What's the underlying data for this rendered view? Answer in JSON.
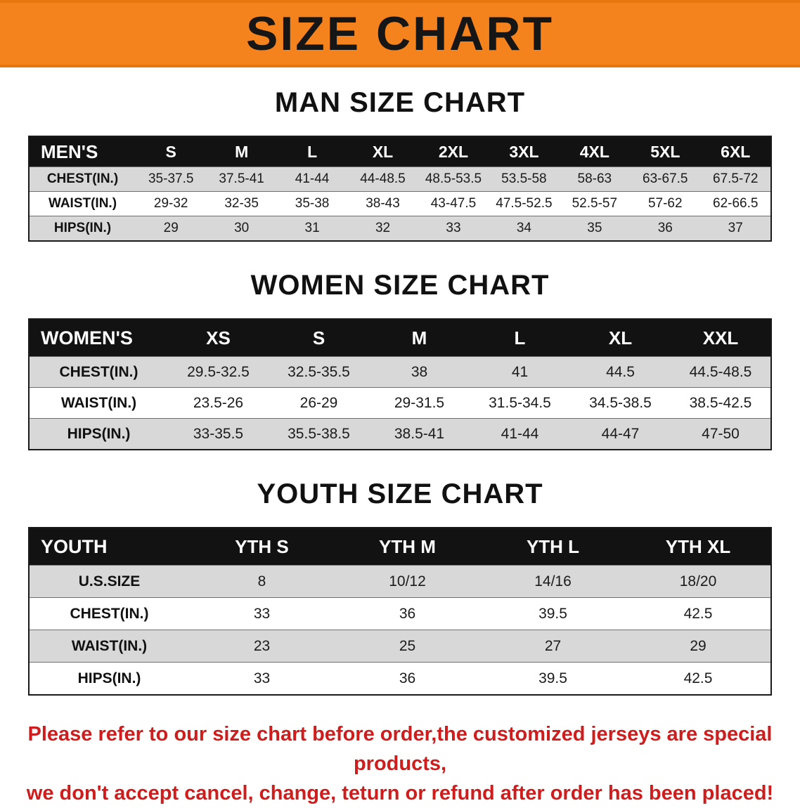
{
  "banner": {
    "title": "SIZE CHART",
    "bg_color": "#f5831d"
  },
  "sections": [
    {
      "id": "mens",
      "title": "MAN SIZE CHART",
      "header_label": "MEN'S",
      "columns": [
        "S",
        "M",
        "L",
        "XL",
        "2XL",
        "3XL",
        "4XL",
        "5XL",
        "6XL"
      ],
      "rows": [
        {
          "label": "CHEST(IN.)",
          "values": [
            "35-37.5",
            "37.5-41",
            "41-44",
            "44-48.5",
            "48.5-53.5",
            "53.5-58",
            "58-63",
            "63-67.5",
            "67.5-72"
          ]
        },
        {
          "label": "WAIST(IN.)",
          "values": [
            "29-32",
            "32-35",
            "35-38",
            "38-43",
            "43-47.5",
            "47.5-52.5",
            "52.5-57",
            "57-62",
            "62-66.5"
          ]
        },
        {
          "label": "HIPS(IN.)",
          "values": [
            "29",
            "30",
            "31",
            "32",
            "33",
            "34",
            "35",
            "36",
            "37"
          ]
        }
      ]
    },
    {
      "id": "womens",
      "title": "WOMEN SIZE CHART",
      "header_label": "WOMEN'S",
      "columns": [
        "XS",
        "S",
        "M",
        "L",
        "XL",
        "XXL"
      ],
      "rows": [
        {
          "label": "CHEST(IN.)",
          "values": [
            "29.5-32.5",
            "32.5-35.5",
            "38",
            "41",
            "44.5",
            "44.5-48.5"
          ]
        },
        {
          "label": "WAIST(IN.)",
          "values": [
            "23.5-26",
            "26-29",
            "29-31.5",
            "31.5-34.5",
            "34.5-38.5",
            "38.5-42.5"
          ]
        },
        {
          "label": "HIPS(IN.)",
          "values": [
            "33-35.5",
            "35.5-38.5",
            "38.5-41",
            "41-44",
            "44-47",
            "47-50"
          ]
        }
      ]
    },
    {
      "id": "youth",
      "title": "YOUTH SIZE CHART",
      "header_label": "YOUTH",
      "columns": [
        "YTH S",
        "YTH M",
        "YTH L",
        "YTH XL"
      ],
      "rows": [
        {
          "label": "U.S.SIZE",
          "values": [
            "8",
            "10/12",
            "14/16",
            "18/20"
          ]
        },
        {
          "label": "CHEST(IN.)",
          "values": [
            "33",
            "36",
            "39.5",
            "42.5"
          ]
        },
        {
          "label": "WAIST(IN.)",
          "values": [
            "23",
            "25",
            "27",
            "29"
          ]
        },
        {
          "label": "HIPS(IN.)",
          "values": [
            "33",
            "36",
            "39.5",
            "42.5"
          ]
        }
      ]
    }
  ],
  "disclaimer": {
    "line1": "Please refer to our size chart before order,the customized jerseys are special products,",
    "line2": "we don't accept cancel, change, teturn or refund after order has been placed!",
    "color": "#cf1d1d"
  }
}
